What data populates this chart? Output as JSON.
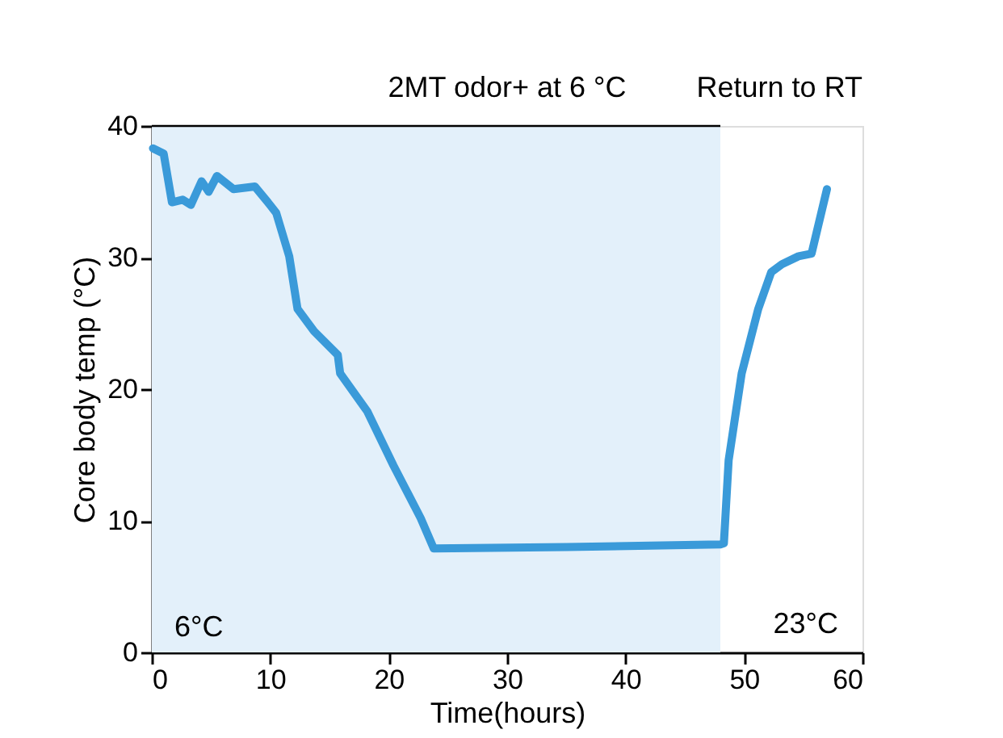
{
  "chart_data": {
    "type": "line",
    "xlabel": "Time(hours)",
    "ylabel": "Core body temp (°C)",
    "x": [
      0.1,
      1.0,
      1.7,
      2.6,
      3.3,
      4.2,
      4.8,
      5.5,
      6.9,
      8.7,
      9.8,
      10.5,
      11.6,
      12.3,
      13.7,
      15.7,
      15.9,
      18.2,
      20.4,
      22.7,
      23.8,
      35,
      48.0,
      48.3,
      48.7,
      49.8,
      51.2,
      52.3,
      53.2,
      54.6,
      55.7,
      57.0
    ],
    "series": [
      {
        "color": "#3a9ad9",
        "values": [
          38.3,
          37.9,
          34.2,
          34.4,
          34.0,
          35.8,
          35.0,
          36.2,
          35.2,
          35.4,
          34.2,
          33.4,
          30.1,
          26.1,
          24.4,
          22.6,
          21.2,
          18.3,
          14.2,
          10.2,
          7.9,
          8.0,
          8.2,
          8.3,
          14.6,
          21.2,
          26.1,
          28.9,
          29.5,
          30.1,
          30.3,
          35.2
        ]
      }
    ],
    "xlim": [
      0,
      60
    ],
    "xticks": [
      0,
      10,
      20,
      30,
      40,
      50,
      60
    ],
    "ylim": [
      0,
      40
    ],
    "yticks": [
      0,
      10,
      20,
      30,
      40
    ],
    "grid": false,
    "marker": "none",
    "line_style": "solid",
    "bands": [
      {
        "axis": "x",
        "from": 0,
        "to": 48,
        "label": "6°C",
        "color": "#e3f0fa"
      }
    ],
    "annotations": [
      "2MT odor+ at 6 °C",
      "Return to RT",
      "23°C"
    ]
  }
}
